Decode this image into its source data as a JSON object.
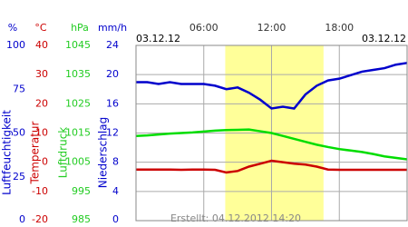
{
  "chart_data": {
    "type": "line",
    "date_left": "03.12.12",
    "date_right": "03.12.12",
    "footer": "Erstellt: 04.12.2012 14:20",
    "xlim": [
      0,
      24
    ],
    "xticks": [
      {
        "value": 6,
        "label": "06:00"
      },
      {
        "value": 12,
        "label": "12:00"
      },
      {
        "value": 18,
        "label": "18:00"
      }
    ],
    "daylight": [
      7.9,
      16.6
    ],
    "axes": [
      {
        "unit": "%",
        "label": "Luftfeuchtigkeit",
        "color": "#0000cc",
        "lim": [
          0,
          100
        ],
        "ticks": [
          100,
          75,
          50,
          25,
          0
        ]
      },
      {
        "unit": "°C",
        "label": "Temperatur",
        "color": "#cc0000",
        "lim": [
          -20,
          40
        ],
        "ticks": [
          40,
          30,
          20,
          10,
          0,
          -10,
          -20
        ]
      },
      {
        "unit": "hPa",
        "label": "Luftdruck",
        "color": "#22cc22",
        "lim": [
          985,
          1045
        ],
        "ticks": [
          1045,
          1035,
          1025,
          1015,
          1005,
          995,
          985
        ]
      },
      {
        "unit": "mm/h",
        "label": "Niederschlag",
        "color": "#0000cc",
        "lim": [
          0,
          24
        ],
        "ticks": [
          24,
          20,
          16,
          12,
          8,
          4,
          0
        ]
      }
    ],
    "x": [
      0,
      1,
      2,
      3,
      4,
      5,
      6,
      7,
      8,
      9,
      10,
      11,
      12,
      13,
      14,
      15,
      16,
      17,
      18,
      19,
      20,
      21,
      22,
      23,
      24
    ],
    "series": [
      {
        "name": "Luftfeuchtigkeit",
        "axis": 0,
        "color": "#0000cc",
        "values": [
          79,
          79,
          78,
          79,
          78,
          78,
          78,
          77,
          75,
          76,
          73,
          69,
          64,
          65,
          64,
          72,
          77,
          80,
          81,
          83,
          85,
          86,
          87,
          89,
          90
        ]
      },
      {
        "name": "Luftdruck",
        "axis": 2,
        "color": "#00dd00",
        "values": [
          1014,
          1014.2,
          1014.5,
          1014.8,
          1015,
          1015.2,
          1015.5,
          1015.8,
          1016,
          1016.1,
          1016.2,
          1015.6,
          1015,
          1014,
          1013,
          1012,
          1011,
          1010.2,
          1009.5,
          1009,
          1008.5,
          1007.8,
          1007,
          1006.5,
          1006
        ]
      },
      {
        "name": "Temperatur",
        "axis": 1,
        "color": "#cc0000",
        "values": [
          -2.5,
          -2.5,
          -2.5,
          -2.5,
          -2.6,
          -2.5,
          -2.5,
          -2.6,
          -3.5,
          -3,
          -1.5,
          -0.5,
          0.5,
          0,
          -0.5,
          -0.8,
          -1.5,
          -2.5,
          -2.6,
          -2.6,
          -2.6,
          -2.6,
          -2.6,
          -2.6,
          -2.6
        ]
      }
    ]
  }
}
